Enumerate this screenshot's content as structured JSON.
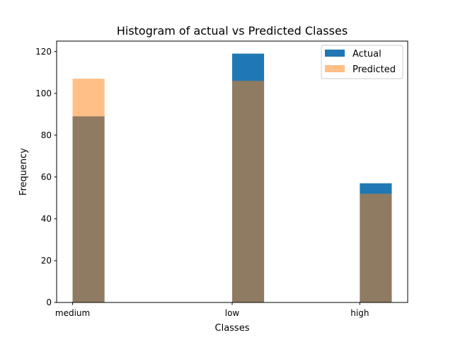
{
  "chart_data": {
    "type": "bar",
    "title": "Histogram of actual vs Predicted Classes",
    "xlabel": "Classes",
    "ylabel": "Frequency",
    "categories": [
      "medium",
      "low",
      "high"
    ],
    "x_positions": [
      0,
      1,
      1.8
    ],
    "xlim": [
      -0.1,
      2.1
    ],
    "ylim": [
      0,
      125
    ],
    "yticks": [
      0,
      20,
      40,
      60,
      80,
      100,
      120
    ],
    "bar_span": [
      0,
      0.2
    ],
    "legend_position": "top-right",
    "series": [
      {
        "name": "Actual",
        "values": [
          89,
          119,
          57
        ],
        "color": "#1f77b4",
        "opacity": 1.0
      },
      {
        "name": "Predicted",
        "values": [
          107,
          106,
          52
        ],
        "color": "#ff7f0e",
        "opacity": 0.5
      }
    ]
  }
}
